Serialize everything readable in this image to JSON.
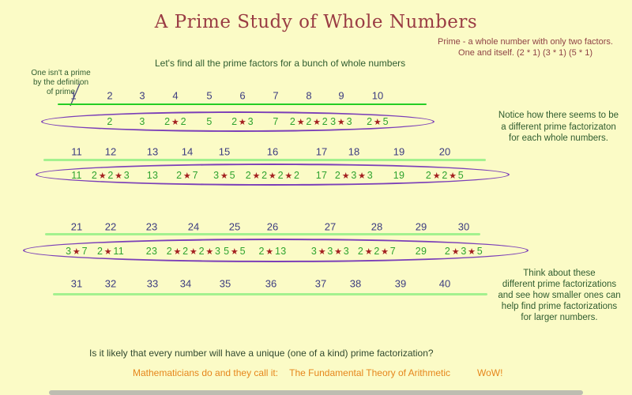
{
  "title": "A Prime Study of Whole Numbers",
  "prime_definition": {
    "line1": "Prime - a whole number with only two factors.",
    "line2": "One and itself.  (2 * 1) (3 * 1) (5 * 1)"
  },
  "intro": "Let's find all the prime factors for a bunch of whole numbers",
  "note_one": {
    "line1": "One isn't a prime",
    "line2": "by the definition",
    "line3": "of prime"
  },
  "side_notes": {
    "notice": [
      "Notice how there seems to be",
      "a different prime factorizaton",
      "for each whole numbers."
    ],
    "think": [
      "Think about these",
      "different prime factorizations",
      "and see how smaller ones can",
      "help find prime factorizations",
      "for larger numbers."
    ]
  },
  "number_rows": [
    {
      "numbers": [
        "1",
        "2",
        "3",
        "4",
        "5",
        "6",
        "7",
        "8",
        "9",
        "10"
      ],
      "factors": [
        "",
        "2",
        "3",
        "2*2",
        "5",
        "2*3",
        "7",
        "2*2*2",
        "3*3",
        "2*5"
      ],
      "circled": true
    },
    {
      "numbers": [
        "11",
        "12",
        "13",
        "14",
        "15",
        "16",
        "17",
        "18",
        "19",
        "20"
      ],
      "factors": [
        "11",
        "2*2*3",
        "13",
        "2*7",
        "3*5",
        "2*2*2*2",
        "17",
        "2*3*3",
        "19",
        "2*2*5"
      ],
      "circled": true
    },
    {
      "numbers": [
        "21",
        "22",
        "23",
        "24",
        "25",
        "26",
        "27",
        "28",
        "29",
        "30"
      ],
      "factors": [
        "3*7",
        "2*11",
        "23",
        "2*2*2*3",
        "5*5",
        "2*13",
        "3*3*3",
        "2*2*7",
        "29",
        "2*3*5"
      ],
      "circled": true
    },
    {
      "numbers": [
        "31",
        "32",
        "33",
        "34",
        "35",
        "36",
        "37",
        "38",
        "39",
        "40"
      ],
      "factors": null,
      "circled": false
    }
  ],
  "question": "Is it likely that every number will have a unique (one of a kind) prime factorization?",
  "conclusion": {
    "intro": "Mathematicians do and they call it:",
    "theorem": "The Fundamental Theory of Arithmetic",
    "exclaim": "WoW!"
  },
  "colors": {
    "background": "#FBFBC6",
    "title": "#9A3C44",
    "definition_text": "#8F4245",
    "green_text": "#2F5C2F",
    "whole_number": "#3C3C80",
    "factor_digit": "#2FA32F",
    "star": "#A31F1F",
    "ellipse": "#7B3FB8",
    "underline_bright": "#25CD25",
    "underline_pale": "#A3F18F",
    "conclusion_orange": "#E6861C"
  }
}
